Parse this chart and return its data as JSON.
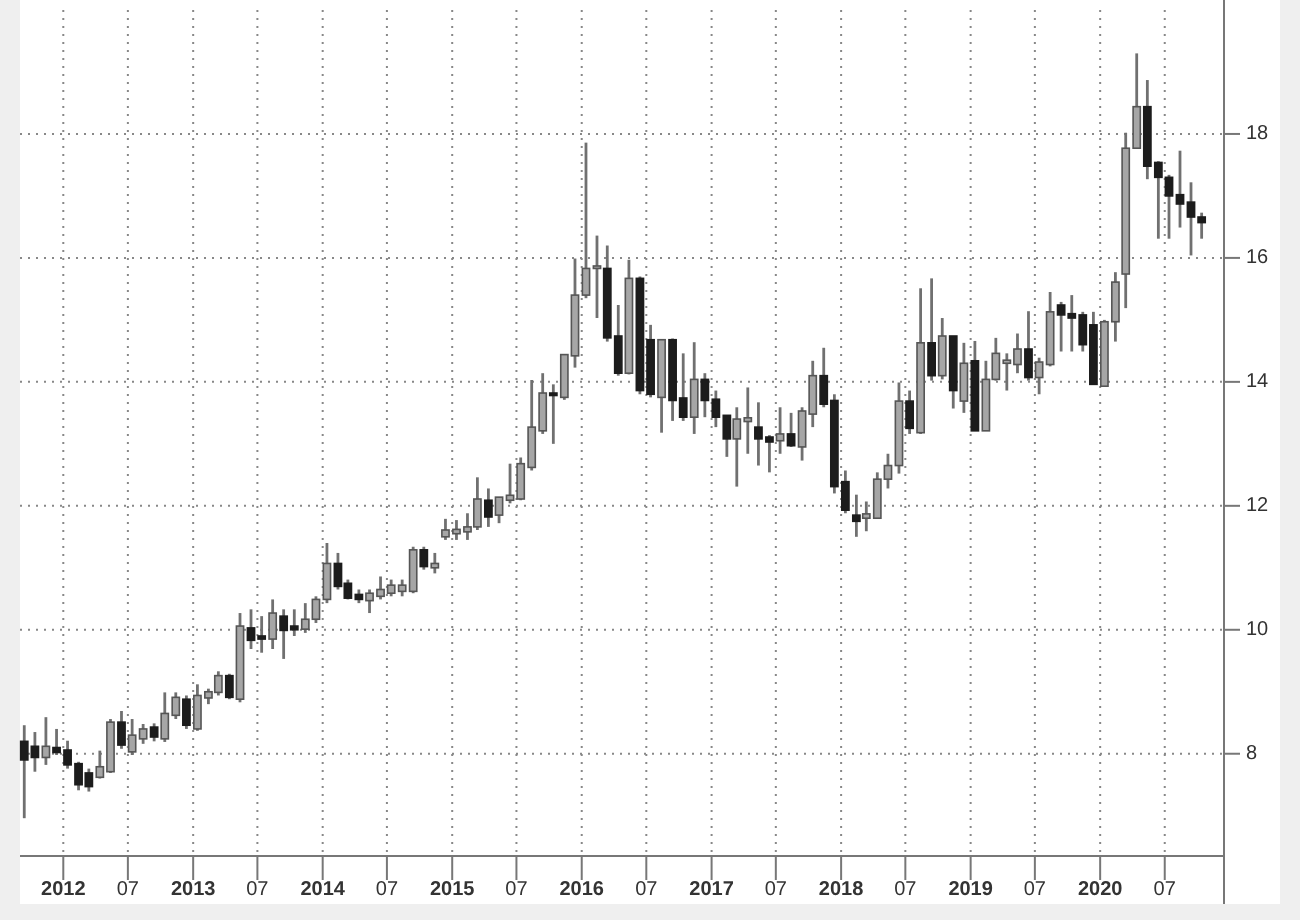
{
  "chart_data": {
    "type": "candlestick",
    "grid": true,
    "x": [
      "2011-09",
      "2011-10",
      "2011-11",
      "2011-12",
      "2012-01",
      "2012-02",
      "2012-03",
      "2012-04",
      "2012-05",
      "2012-06",
      "2012-07",
      "2012-08",
      "2012-09",
      "2012-10",
      "2012-11",
      "2012-12",
      "2013-01",
      "2013-02",
      "2013-03",
      "2013-04",
      "2013-05",
      "2013-06",
      "2013-07",
      "2013-08",
      "2013-09",
      "2013-10",
      "2013-11",
      "2013-12",
      "2014-01",
      "2014-02",
      "2014-03",
      "2014-04",
      "2014-05",
      "2014-06",
      "2014-07",
      "2014-08",
      "2014-09",
      "2014-10",
      "2014-11",
      "2014-12",
      "2015-01",
      "2015-02",
      "2015-03",
      "2015-04",
      "2015-05",
      "2015-06",
      "2015-07",
      "2015-08",
      "2015-09",
      "2015-10",
      "2015-11",
      "2015-12",
      "2016-01",
      "2016-02",
      "2016-03",
      "2016-04",
      "2016-05",
      "2016-06",
      "2016-07",
      "2016-08",
      "2016-09",
      "2016-10",
      "2016-11",
      "2016-12",
      "2017-01",
      "2017-02",
      "2017-03",
      "2017-04",
      "2017-05",
      "2017-06",
      "2017-07",
      "2017-08",
      "2017-09",
      "2017-10",
      "2017-11",
      "2017-12",
      "2018-01",
      "2018-02",
      "2018-03",
      "2018-04",
      "2018-05",
      "2018-06",
      "2018-07",
      "2018-08",
      "2018-09",
      "2018-10",
      "2018-11",
      "2018-12",
      "2019-01",
      "2019-02",
      "2019-03",
      "2019-04",
      "2019-05",
      "2019-06",
      "2019-07",
      "2019-08",
      "2019-09",
      "2019-10",
      "2019-11",
      "2019-12",
      "2020-01",
      "2020-02",
      "2020-03",
      "2020-04",
      "2020-05",
      "2020-06",
      "2020-07",
      "2020-08",
      "2020-09",
      "2020-10"
    ],
    "ohlc": [
      [
        8.2,
        8.46,
        6.96,
        7.9
      ],
      [
        8.12,
        8.35,
        7.71,
        7.94
      ],
      [
        7.94,
        8.59,
        7.82,
        8.12
      ],
      [
        8.1,
        8.4,
        7.98,
        8.02
      ],
      [
        8.06,
        8.21,
        7.76,
        7.82
      ],
      [
        7.84,
        7.87,
        7.41,
        7.5
      ],
      [
        7.69,
        7.76,
        7.39,
        7.47
      ],
      [
        7.62,
        8.05,
        7.6,
        7.79
      ],
      [
        7.71,
        8.56,
        7.69,
        8.51
      ],
      [
        8.51,
        8.69,
        8.08,
        8.14
      ],
      [
        8.03,
        8.56,
        7.98,
        8.3
      ],
      [
        8.24,
        8.48,
        8.16,
        8.4
      ],
      [
        8.43,
        8.49,
        8.2,
        8.27
      ],
      [
        8.24,
        8.99,
        8.19,
        8.65
      ],
      [
        8.62,
        8.99,
        8.56,
        8.91
      ],
      [
        8.88,
        8.94,
        8.4,
        8.46
      ],
      [
        8.4,
        9.12,
        8.37,
        8.94
      ],
      [
        8.9,
        9.05,
        8.8,
        9.0
      ],
      [
        8.99,
        9.33,
        8.94,
        9.26
      ],
      [
        9.26,
        9.29,
        8.88,
        8.91
      ],
      [
        8.88,
        10.27,
        8.83,
        10.06
      ],
      [
        10.03,
        10.33,
        9.69,
        9.83
      ],
      [
        9.9,
        10.22,
        9.63,
        9.85
      ],
      [
        9.85,
        10.49,
        9.69,
        10.27
      ],
      [
        10.22,
        10.33,
        9.53,
        9.99
      ],
      [
        10.06,
        10.33,
        9.9,
        10.0
      ],
      [
        10.01,
        10.43,
        9.95,
        10.17
      ],
      [
        10.17,
        10.54,
        10.11,
        10.49
      ],
      [
        10.49,
        11.4,
        10.43,
        11.07
      ],
      [
        11.07,
        11.24,
        10.65,
        10.7
      ],
      [
        10.75,
        10.81,
        10.49,
        10.51
      ],
      [
        10.57,
        10.65,
        10.43,
        10.49
      ],
      [
        10.47,
        10.65,
        10.27,
        10.59
      ],
      [
        10.54,
        10.86,
        10.49,
        10.65
      ],
      [
        10.59,
        10.81,
        10.54,
        10.72
      ],
      [
        10.62,
        10.81,
        10.54,
        10.72
      ],
      [
        10.62,
        11.34,
        10.59,
        11.29
      ],
      [
        11.29,
        11.34,
        10.97,
        11.02
      ],
      [
        11.0,
        11.24,
        10.91,
        11.07
      ],
      [
        11.5,
        11.79,
        11.45,
        11.61
      ],
      [
        11.55,
        11.77,
        11.45,
        11.62
      ],
      [
        11.58,
        11.88,
        11.45,
        11.66
      ],
      [
        11.66,
        12.46,
        11.61,
        12.11
      ],
      [
        12.09,
        12.28,
        11.66,
        11.82
      ],
      [
        11.85,
        12.14,
        11.72,
        12.14
      ],
      [
        12.09,
        12.68,
        12.04,
        12.17
      ],
      [
        12.11,
        12.78,
        12.09,
        12.68
      ],
      [
        12.62,
        14.03,
        12.57,
        13.27
      ],
      [
        13.21,
        14.14,
        13.16,
        13.82
      ],
      [
        13.82,
        13.96,
        13.0,
        13.78
      ],
      [
        13.75,
        14.44,
        13.71,
        14.44
      ],
      [
        14.42,
        15.99,
        14.23,
        15.4
      ],
      [
        15.4,
        17.86,
        15.35,
        15.83
      ],
      [
        15.83,
        16.36,
        15.03,
        15.87
      ],
      [
        15.83,
        16.2,
        14.65,
        14.71
      ],
      [
        14.74,
        15.24,
        14.1,
        14.14
      ],
      [
        14.14,
        15.97,
        14.12,
        15.67
      ],
      [
        15.67,
        15.7,
        13.8,
        13.86
      ],
      [
        14.68,
        14.92,
        13.75,
        13.8
      ],
      [
        13.75,
        14.68,
        13.18,
        14.68
      ],
      [
        14.68,
        14.7,
        13.37,
        13.7
      ],
      [
        13.74,
        14.46,
        13.37,
        13.43
      ],
      [
        13.43,
        14.64,
        13.16,
        14.04
      ],
      [
        14.04,
        14.14,
        13.43,
        13.7
      ],
      [
        13.72,
        13.86,
        13.27,
        13.43
      ],
      [
        13.46,
        13.46,
        12.79,
        13.08
      ],
      [
        13.08,
        13.59,
        12.31,
        13.4
      ],
      [
        13.36,
        13.91,
        12.84,
        13.42
      ],
      [
        13.27,
        13.67,
        12.65,
        13.08
      ],
      [
        13.11,
        13.14,
        12.54,
        13.03
      ],
      [
        13.05,
        13.59,
        12.84,
        13.16
      ],
      [
        13.16,
        13.5,
        12.95,
        12.97
      ],
      [
        12.95,
        13.59,
        12.73,
        13.53
      ],
      [
        13.48,
        14.34,
        13.27,
        14.1
      ],
      [
        14.1,
        14.55,
        13.59,
        13.64
      ],
      [
        13.7,
        13.8,
        12.2,
        12.31
      ],
      [
        12.39,
        12.57,
        11.88,
        11.93
      ],
      [
        11.85,
        12.18,
        11.5,
        11.75
      ],
      [
        11.8,
        12.07,
        11.59,
        11.87
      ],
      [
        11.8,
        12.54,
        11.8,
        12.43
      ],
      [
        12.43,
        12.84,
        12.28,
        12.65
      ],
      [
        12.65,
        13.99,
        12.52,
        13.69
      ],
      [
        13.69,
        13.86,
        13.16,
        13.25
      ],
      [
        13.18,
        15.51,
        13.16,
        14.63
      ],
      [
        14.63,
        15.67,
        14.02,
        14.1
      ],
      [
        14.1,
        15.03,
        14.04,
        14.74
      ],
      [
        14.74,
        14.74,
        13.57,
        13.86
      ],
      [
        13.69,
        14.63,
        13.5,
        14.3
      ],
      [
        14.34,
        14.66,
        13.21,
        13.21
      ],
      [
        13.21,
        14.34,
        13.21,
        14.04
      ],
      [
        14.04,
        14.71,
        14.02,
        14.46
      ],
      [
        14.3,
        14.46,
        13.86,
        14.35
      ],
      [
        14.28,
        14.78,
        14.14,
        14.53
      ],
      [
        14.53,
        15.14,
        14.02,
        14.07
      ],
      [
        14.07,
        14.39,
        13.8,
        14.32
      ],
      [
        14.28,
        15.45,
        14.25,
        15.13
      ],
      [
        15.24,
        15.29,
        14.49,
        15.08
      ],
      [
        15.1,
        15.4,
        14.49,
        15.03
      ],
      [
        15.08,
        15.13,
        14.49,
        14.6
      ],
      [
        14.92,
        15.13,
        13.96,
        13.96
      ],
      [
        13.93,
        15.0,
        13.93,
        14.97
      ],
      [
        14.97,
        15.77,
        14.65,
        15.61
      ],
      [
        15.74,
        18.02,
        15.19,
        17.77
      ],
      [
        17.77,
        19.3,
        17.77,
        18.44
      ],
      [
        18.44,
        18.87,
        17.27,
        17.48
      ],
      [
        17.54,
        17.56,
        16.31,
        17.3
      ],
      [
        17.3,
        17.34,
        16.31,
        17.0
      ],
      [
        17.02,
        17.73,
        16.49,
        16.87
      ],
      [
        16.9,
        17.22,
        16.04,
        16.66
      ],
      [
        16.66,
        16.73,
        16.31,
        16.57
      ]
    ],
    "xlim": [
      "2011-09",
      "2020-12-15"
    ],
    "xticks": [
      {
        "value": "2012-01",
        "label": "2012"
      },
      {
        "value": "2012-07",
        "label": "07"
      },
      {
        "value": "2013-01",
        "label": "2013"
      },
      {
        "value": "2013-07",
        "label": "07"
      },
      {
        "value": "2014-01",
        "label": "2014"
      },
      {
        "value": "2014-07",
        "label": "07"
      },
      {
        "value": "2015-01",
        "label": "2015"
      },
      {
        "value": "2015-07",
        "label": "07"
      },
      {
        "value": "2016-01",
        "label": "2016"
      },
      {
        "value": "2016-07",
        "label": "07"
      },
      {
        "value": "2017-01",
        "label": "2017"
      },
      {
        "value": "2017-07",
        "label": "07"
      },
      {
        "value": "2018-01",
        "label": "2018"
      },
      {
        "value": "2018-07",
        "label": "07"
      },
      {
        "value": "2019-01",
        "label": "2019"
      },
      {
        "value": "2019-07",
        "label": "07"
      },
      {
        "value": "2020-01",
        "label": "2020"
      },
      {
        "value": "2020-07",
        "label": "07"
      }
    ],
    "ylim": [
      6.35,
      20
    ],
    "yticks": [
      8,
      10,
      12,
      14,
      16,
      18
    ]
  }
}
